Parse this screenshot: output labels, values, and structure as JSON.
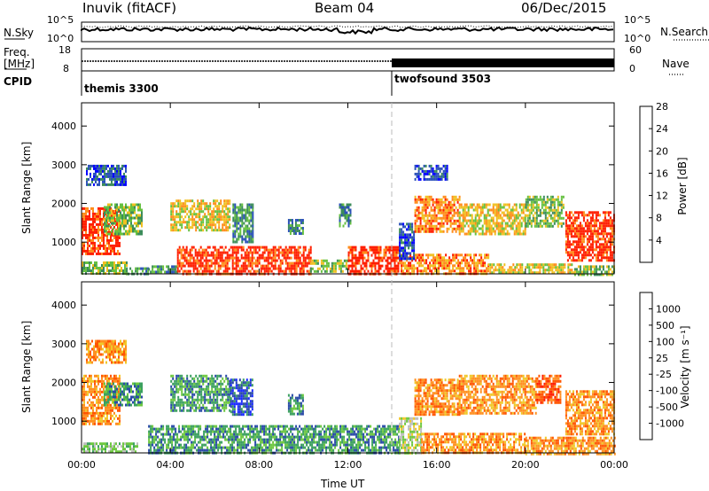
{
  "header": {
    "station": "Inuvik (fitACF)",
    "beam": "Beam 04",
    "date": "06/Dec/2015"
  },
  "top_strips": {
    "nsky_label": "N.Sky",
    "nsearch_label": "N.Search",
    "noise_ticks": [
      "10^5",
      "10^0"
    ],
    "freq_label_1": "Freq.",
    "freq_label_2": "[MHz]",
    "freq_ticks": [
      "18",
      "8"
    ],
    "nave_label": "Nave",
    "nave_ticks": [
      "60",
      "0"
    ],
    "cpid_label": "CPID",
    "cpid_segments": [
      {
        "name": "themis 3300",
        "start": "00:00",
        "end": "14:00"
      },
      {
        "name": "twofsound 3503",
        "start": "14:00",
        "end": "24:00"
      }
    ]
  },
  "chart_data": [
    {
      "type": "heatmap",
      "title": "",
      "quantity": "Power",
      "xlabel": "Time UT",
      "ylabel": "Slant Range [km]",
      "colorbar_label": "Power [dB]",
      "colorbar_ticks": [
        "4",
        "8",
        "12",
        "16",
        "20",
        "24",
        "28"
      ],
      "colorbar_range": [
        0,
        32
      ],
      "colors": [
        "#0000ff",
        "#2a50b8",
        "#3c8c5a",
        "#66c040",
        "#f0c020",
        "#ff8c1a",
        "#ff1e00"
      ],
      "x_ticks": [
        "00:00",
        "04:00",
        "08:00",
        "12:00",
        "16:00",
        "20:00",
        "00:00"
      ],
      "xlim_hours": [
        0,
        24
      ],
      "y_ticks": [
        "1000",
        "2000",
        "3000",
        "4000"
      ],
      "ylim_km": [
        180,
        4600
      ],
      "echo_regions": [
        {
          "t0": 0.0,
          "t1": 2.0,
          "r0": 200,
          "r1": 500,
          "level": 16
        },
        {
          "t0": 2.0,
          "t1": 3.0,
          "r0": 200,
          "r1": 350,
          "level": 10
        },
        {
          "t0": 3.0,
          "t1": 4.3,
          "r0": 200,
          "r1": 400,
          "level": 12
        },
        {
          "t0": 4.3,
          "t1": 10.3,
          "r0": 180,
          "r1": 900,
          "level": 28
        },
        {
          "t0": 10.3,
          "t1": 12.0,
          "r0": 250,
          "r1": 550,
          "level": 14
        },
        {
          "t0": 12.0,
          "t1": 14.3,
          "r0": 180,
          "r1": 900,
          "level": 28
        },
        {
          "t0": 14.3,
          "t1": 18.3,
          "r0": 180,
          "r1": 700,
          "level": 24
        },
        {
          "t0": 18.3,
          "t1": 22.2,
          "r0": 180,
          "r1": 450,
          "level": 22
        },
        {
          "t0": 22.2,
          "t1": 24.0,
          "r0": 180,
          "r1": 400,
          "level": 18
        },
        {
          "t0": 0.0,
          "t1": 1.7,
          "r0": 700,
          "r1": 1900,
          "level": 28
        },
        {
          "t0": 1.0,
          "t1": 2.7,
          "r0": 1200,
          "r1": 2000,
          "level": 18
        },
        {
          "t0": 0.2,
          "t1": 2.0,
          "r0": 2500,
          "r1": 3000,
          "level": 8
        },
        {
          "t0": 4.0,
          "t1": 6.7,
          "r0": 1300,
          "r1": 2100,
          "level": 22
        },
        {
          "t0": 6.8,
          "t1": 7.7,
          "r0": 1000,
          "r1": 2000,
          "level": 12
        },
        {
          "t0": 9.3,
          "t1": 10.0,
          "r0": 1200,
          "r1": 1600,
          "level": 12
        },
        {
          "t0": 11.6,
          "t1": 12.1,
          "r0": 1400,
          "r1": 2000,
          "level": 12
        },
        {
          "t0": 14.3,
          "t1": 15.0,
          "r0": 600,
          "r1": 1500,
          "level": 8
        },
        {
          "t0": 15.0,
          "t1": 17.0,
          "r0": 1300,
          "r1": 2200,
          "level": 24
        },
        {
          "t0": 17.0,
          "t1": 20.0,
          "r0": 1200,
          "r1": 2000,
          "level": 20
        },
        {
          "t0": 20.0,
          "t1": 21.7,
          "r0": 1400,
          "r1": 2200,
          "level": 18
        },
        {
          "t0": 21.8,
          "t1": 24.0,
          "r0": 500,
          "r1": 1800,
          "level": 28
        },
        {
          "t0": 15.0,
          "t1": 16.5,
          "r0": 2600,
          "r1": 3000,
          "level": 8
        }
      ]
    },
    {
      "type": "heatmap",
      "title": "",
      "quantity": "Velocity",
      "xlabel": "Time UT",
      "ylabel": "Slant Range [km]",
      "colorbar_label": "Velocity [m s⁻¹]",
      "colorbar_ticks": [
        "-1000",
        "-500",
        "-100",
        "-25",
        "25",
        "100",
        "500",
        "1000"
      ],
      "colors": [
        "#ff1e00",
        "#ff5500",
        "#ff9020",
        "#f0c828",
        "#bebebe",
        "#6ec840",
        "#3ca060",
        "#2a4aa8",
        "#1a2aff"
      ],
      "x_ticks": [
        "00:00",
        "04:00",
        "08:00",
        "12:00",
        "16:00",
        "20:00",
        "00:00"
      ],
      "xlim_hours": [
        0,
        24
      ],
      "y_ticks": [
        "1000",
        "2000",
        "3000",
        "4000"
      ],
      "ylim_km": [
        180,
        4600
      ],
      "echo_regions": [
        {
          "t0": 0.0,
          "t1": 2.5,
          "r0": 180,
          "r1": 450,
          "level": 5
        },
        {
          "t0": 3.0,
          "t1": 14.3,
          "r0": 180,
          "r1": 900,
          "level": 6
        },
        {
          "t0": 14.3,
          "t1": 15.3,
          "r0": 180,
          "r1": 1100,
          "level": 4
        },
        {
          "t0": 15.3,
          "t1": 20.0,
          "r0": 180,
          "r1": 700,
          "level": 2
        },
        {
          "t0": 20.0,
          "t1": 24.0,
          "r0": 180,
          "r1": 600,
          "level": 2
        },
        {
          "t0": 0.0,
          "t1": 1.7,
          "r0": 900,
          "r1": 2200,
          "level": 2
        },
        {
          "t0": 1.0,
          "t1": 2.7,
          "r0": 1400,
          "r1": 2000,
          "level": 6
        },
        {
          "t0": 4.0,
          "t1": 6.7,
          "r0": 1300,
          "r1": 2200,
          "level": 6
        },
        {
          "t0": 6.7,
          "t1": 7.7,
          "r0": 1200,
          "r1": 2100,
          "level": 7
        },
        {
          "t0": 9.3,
          "t1": 10.0,
          "r0": 1200,
          "r1": 1700,
          "level": 6
        },
        {
          "t0": 15.0,
          "t1": 17.0,
          "r0": 1200,
          "r1": 2100,
          "level": 2
        },
        {
          "t0": 17.0,
          "t1": 20.5,
          "r0": 1200,
          "r1": 2200,
          "level": 2
        },
        {
          "t0": 20.5,
          "t1": 21.6,
          "r0": 1500,
          "r1": 2200,
          "level": 1
        },
        {
          "t0": 21.8,
          "t1": 24.0,
          "r0": 700,
          "r1": 1800,
          "level": 2
        },
        {
          "t0": 0.2,
          "t1": 2.0,
          "r0": 2500,
          "r1": 3100,
          "level": 2
        }
      ]
    }
  ]
}
